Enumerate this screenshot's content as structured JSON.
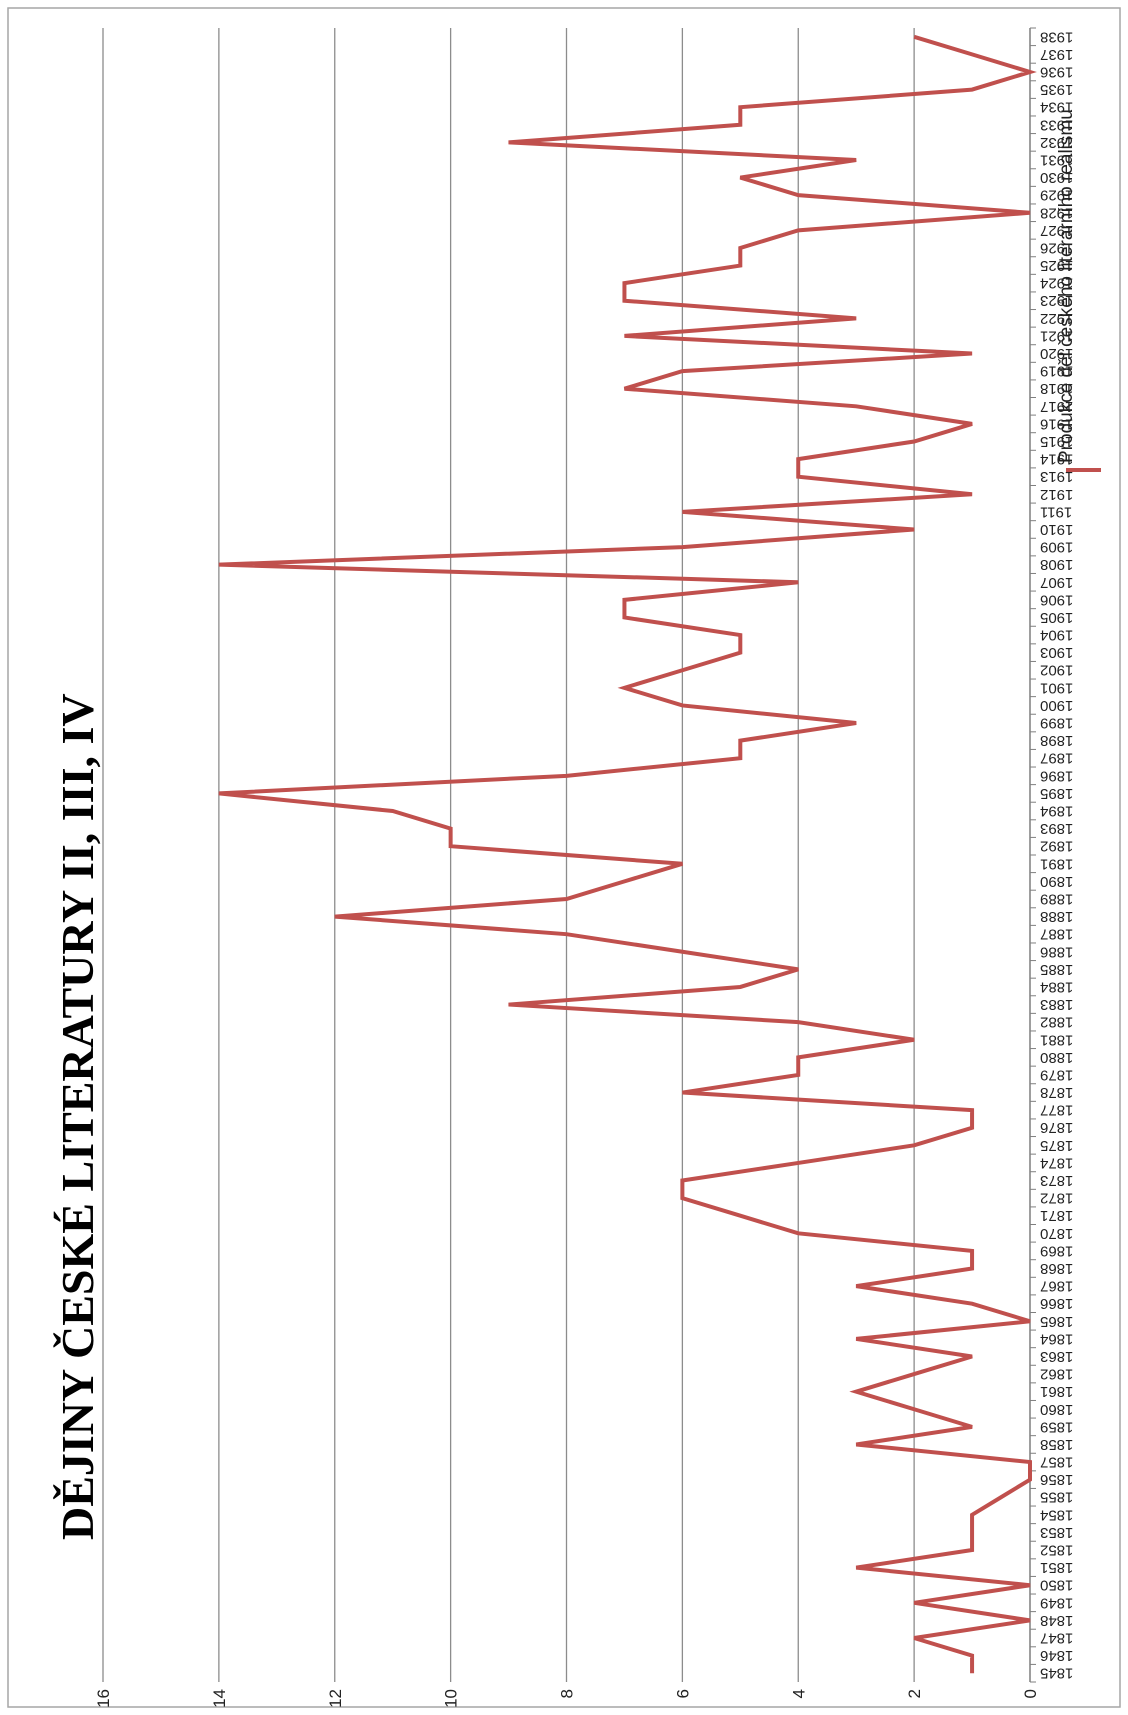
{
  "colors": {
    "series": "#c0504d",
    "grid": "#8c8c8c",
    "axis": "#7f7f7f",
    "frame": "#a6a6a6"
  },
  "chart_data": {
    "type": "line",
    "title": "DĚJINY ČESKÉ LITERATURY II, III, IV",
    "xlabel": "",
    "ylabel": "",
    "ylim": [
      0,
      16
    ],
    "yticks": [
      0,
      2,
      4,
      6,
      8,
      10,
      12,
      14,
      16
    ],
    "grid": true,
    "legend_placement": "top-right",
    "x": [
      1845,
      1846,
      1847,
      1848,
      1849,
      1850,
      1851,
      1852,
      1853,
      1854,
      1855,
      1856,
      1857,
      1858,
      1859,
      1860,
      1861,
      1862,
      1863,
      1864,
      1865,
      1866,
      1867,
      1868,
      1869,
      1870,
      1871,
      1872,
      1873,
      1874,
      1875,
      1876,
      1877,
      1878,
      1879,
      1880,
      1881,
      1882,
      1883,
      1884,
      1885,
      1886,
      1887,
      1888,
      1889,
      1890,
      1891,
      1892,
      1893,
      1894,
      1895,
      1896,
      1897,
      1898,
      1899,
      1900,
      1901,
      1902,
      1903,
      1904,
      1905,
      1906,
      1907,
      1908,
      1909,
      1910,
      1911,
      1912,
      1913,
      1914,
      1915,
      1916,
      1917,
      1918,
      1919,
      1920,
      1921,
      1922,
      1923,
      1924,
      1925,
      1926,
      1927,
      1928,
      1929,
      1930,
      1931,
      1932,
      1933,
      1934,
      1935,
      1936,
      1937,
      1938
    ],
    "series": [
      {
        "name": "Produkce děl českého literárního realismu",
        "values": [
          1,
          1,
          2,
          0,
          2,
          0,
          3,
          1,
          1,
          1,
          0.5,
          0,
          0,
          3,
          1,
          2,
          3,
          2,
          1,
          3,
          0,
          1,
          3,
          1,
          1,
          4,
          5,
          6,
          6,
          4,
          2,
          1,
          1,
          6,
          4,
          4,
          2,
          4,
          9,
          5,
          4,
          6,
          8,
          12,
          8,
          7,
          6,
          10,
          10,
          11,
          14,
          8,
          5,
          5,
          3,
          6,
          7,
          6,
          5,
          5,
          7,
          7,
          4,
          14,
          6,
          2,
          6,
          1,
          4,
          4,
          2,
          1,
          3,
          7,
          6,
          1,
          7,
          3,
          7,
          7,
          5,
          5,
          4,
          0,
          4,
          5,
          3,
          9,
          5,
          5,
          1,
          0,
          1,
          2
        ]
      }
    ]
  }
}
